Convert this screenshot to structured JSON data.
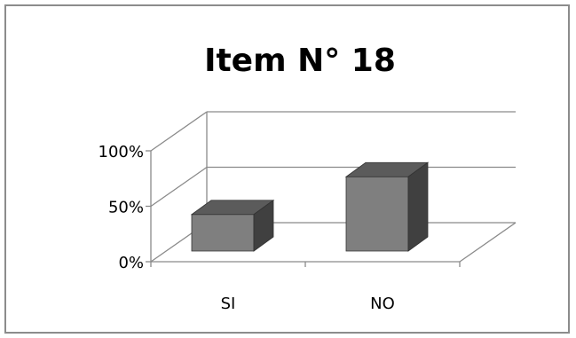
{
  "chart_data": {
    "type": "bar",
    "title": "Item N° 18",
    "xlabel": "",
    "ylabel": "",
    "categories": [
      "SI",
      "NO"
    ],
    "values": [
      33,
      67
    ],
    "ylim": [
      0,
      100
    ],
    "yticks": [
      "0%",
      "50%",
      "100%"
    ],
    "legend": "none",
    "grid": true,
    "three_d": true,
    "colors": {
      "front": "#7f7f7f",
      "top": "#5b5b5b",
      "side": "#404040",
      "grid": "#8a8a8a",
      "frame": "#8c8c8c"
    }
  }
}
